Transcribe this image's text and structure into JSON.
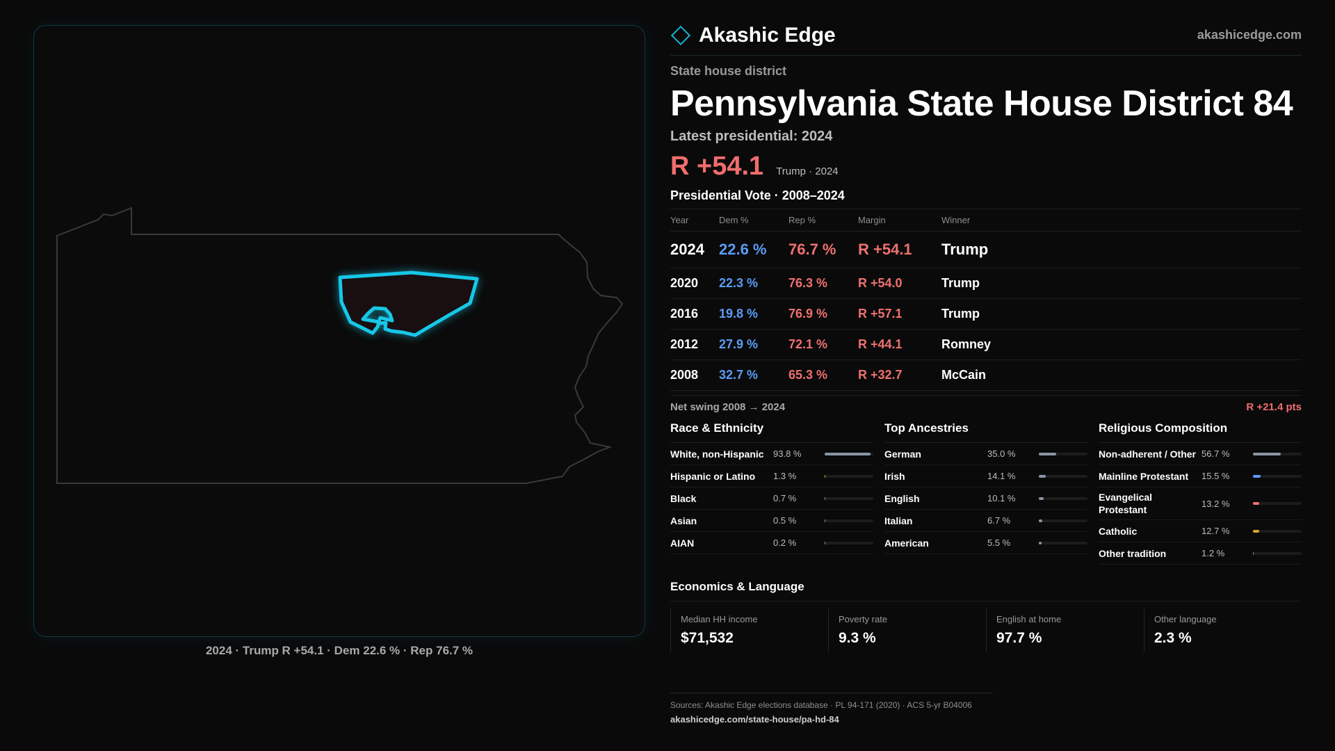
{
  "brand": {
    "name": "Akashic Edge",
    "site": "akashicedge.com"
  },
  "page": {
    "kind": "State house district",
    "title": "Pennsylvania State House District 84",
    "latest_label": "Latest presidential: 2024",
    "headline_margin": "R +54.1",
    "headline_note": "Trump · 2024"
  },
  "map": {
    "caption": "2024 · Trump R +54.1 · Dem 22.6 % · Rep 76.7 %",
    "state_outline_color": "#3a3a3a",
    "district_color": "#17c7e8",
    "district_fill": "#1a0f10"
  },
  "vote": {
    "title": "Presidential Vote · 2008–2024",
    "headers": {
      "year": "Year",
      "dem": "Dem %",
      "rep": "Rep %",
      "margin": "Margin",
      "winner": "Winner"
    },
    "rows": [
      {
        "year": "2024",
        "dem": "22.6 %",
        "rep": "76.7 %",
        "margin": "R +54.1",
        "winner": "Trump"
      },
      {
        "year": "2020",
        "dem": "22.3 %",
        "rep": "76.3 %",
        "margin": "R +54.0",
        "winner": "Trump"
      },
      {
        "year": "2016",
        "dem": "19.8 %",
        "rep": "76.9 %",
        "margin": "R +57.1",
        "winner": "Trump"
      },
      {
        "year": "2012",
        "dem": "27.9 %",
        "rep": "72.1 %",
        "margin": "R +44.1",
        "winner": "Romney"
      },
      {
        "year": "2008",
        "dem": "32.7 %",
        "rep": "65.3 %",
        "margin": "R +32.7",
        "winner": "McCain"
      }
    ],
    "swing_label": "Net swing 2008 → 2024",
    "swing_value": "R +21.4 pts"
  },
  "race": {
    "title": "Race & Ethnicity",
    "items": [
      {
        "label": "White, non-Hispanic",
        "value": "93.8 %",
        "pct": 93.8,
        "color": "#8a96a3"
      },
      {
        "label": "Hispanic or Latino",
        "value": "1.3 %",
        "pct": 1.3,
        "color": "#d4a72c"
      },
      {
        "label": "Black",
        "value": "0.7 %",
        "pct": 0.7,
        "color": "#8a96a3"
      },
      {
        "label": "Asian",
        "value": "0.5 %",
        "pct": 0.5,
        "color": "#8a96a3"
      },
      {
        "label": "AIAN",
        "value": "0.2 %",
        "pct": 0.2,
        "color": "#8a96a3"
      }
    ]
  },
  "ancestry": {
    "title": "Top Ancestries",
    "items": [
      {
        "label": "German",
        "value": "35.0 %",
        "pct": 35.0,
        "color": "#8a96a3"
      },
      {
        "label": "Irish",
        "value": "14.1 %",
        "pct": 14.1,
        "color": "#8a96a3"
      },
      {
        "label": "English",
        "value": "10.1 %",
        "pct": 10.1,
        "color": "#8a96a3"
      },
      {
        "label": "Italian",
        "value": "6.7 %",
        "pct": 6.7,
        "color": "#8a96a3"
      },
      {
        "label": "American",
        "value": "5.5 %",
        "pct": 5.5,
        "color": "#8a96a3"
      }
    ]
  },
  "religion": {
    "title": "Religious Composition",
    "items": [
      {
        "label": "Non-adherent / Other",
        "value": "56.7 %",
        "pct": 56.7,
        "color": "#8a96a3"
      },
      {
        "label": "Mainline Protestant",
        "value": "15.5 %",
        "pct": 15.5,
        "color": "#5b9cf5"
      },
      {
        "label": "Evangelical Protestant",
        "value": "13.2 %",
        "pct": 13.2,
        "color": "#f07070"
      },
      {
        "label": "Catholic",
        "value": "12.7 %",
        "pct": 12.7,
        "color": "#d4a72c"
      },
      {
        "label": "Other tradition",
        "value": "1.2 %",
        "pct": 1.2,
        "color": "#8a96a3"
      }
    ]
  },
  "economics": {
    "title": "Economics & Language",
    "items": [
      {
        "label": "Median HH income",
        "value": "$71,532"
      },
      {
        "label": "Poverty rate",
        "value": "9.3 %"
      },
      {
        "label": "English at home",
        "value": "97.7 %"
      },
      {
        "label": "Other language",
        "value": "2.3 %"
      }
    ]
  },
  "footer": {
    "sources": "Sources: Akashic Edge elections database · PL 94-171 (2020) · ACS 5-yr B04006",
    "url": "akashicedge.com/state-house/pa-hd-84"
  }
}
